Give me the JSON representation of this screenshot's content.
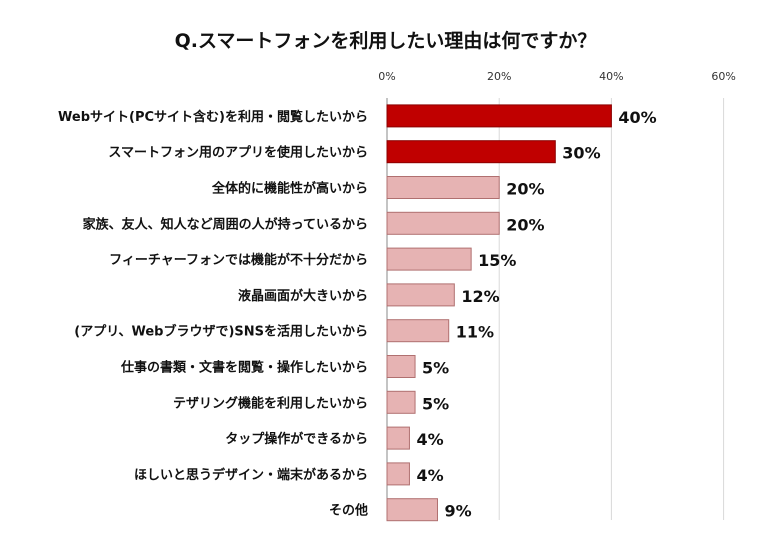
{
  "chart_data": {
    "type": "bar",
    "orientation": "horizontal",
    "title": "Q.スマートフォンを利用したい理由は何ですか？",
    "xlim": [
      0,
      60
    ],
    "ticks": [
      "0%",
      "20%",
      "40%",
      "60%"
    ],
    "tick_values": [
      0,
      20,
      40,
      60
    ],
    "grid": true,
    "categories": [
      "Webサイト(PCサイト含む)を利用・閲覧したいから",
      "スマートフォン用のアプリを使用したいから",
      "全体的に機能性が高いから",
      "家族、友人、知人など周囲の人が持っているから",
      "フィーチャーフォンでは機能が不十分だから",
      "液晶画面が大きいから",
      "(アプリ、Webブラウザで)SNSを活用したいから",
      "仕事の書類・文書を閲覧・操作したいから",
      "テザリング機能を利用したいから",
      "タップ操作ができるから",
      "ほしいと思うデザイン・端末があるから",
      "その他"
    ],
    "values": [
      40,
      30,
      20,
      20,
      15,
      12,
      11,
      5,
      5,
      4,
      4,
      9
    ],
    "value_labels": [
      "40%",
      "30%",
      "20%",
      "20%",
      "15%",
      "12%",
      "11%",
      "5%",
      "5%",
      "4%",
      "4%",
      "9%"
    ],
    "highlight_count": 2,
    "colors": {
      "highlight": "#c00000",
      "highlight_border": "#8b0000",
      "normal": "#e6b3b3",
      "normal_border": "#b07070",
      "grid": "#d9d9d9",
      "axis": "#888888"
    }
  }
}
